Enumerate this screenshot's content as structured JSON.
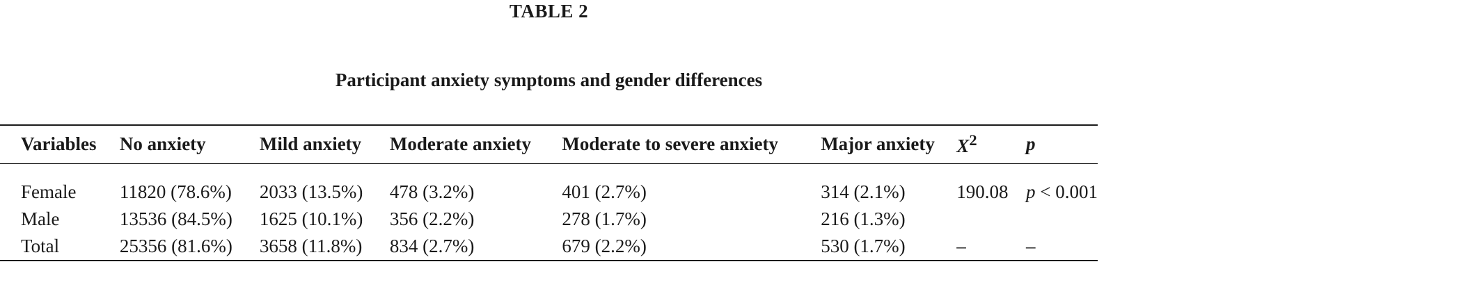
{
  "table": {
    "number": "TABLE 2",
    "caption": "Participant anxiety symptoms and gender differences",
    "headers": {
      "variables": "Variables",
      "no_anxiety": "No anxiety",
      "mild_anxiety": "Mild anxiety",
      "moderate_anxiety": "Moderate anxiety",
      "moderate_to_severe_anxiety": "Moderate to severe anxiety",
      "major_anxiety": "Major anxiety",
      "chi_square_base": "X",
      "chi_square_exp": "2",
      "p": "p"
    },
    "rows": [
      {
        "variable": "Female",
        "no_anxiety": "11820 (78.6%)",
        "mild_anxiety": "2033 (13.5%)",
        "moderate_anxiety": "478 (3.2%)",
        "moderate_to_severe_anxiety": "401 (2.7%)",
        "major_anxiety": "314 (2.1%)",
        "chi_square": "190.08",
        "p_symbol": "p",
        "p_value": " < 0.001"
      },
      {
        "variable": "Male",
        "no_anxiety": "13536 (84.5%)",
        "mild_anxiety": "1625 (10.1%)",
        "moderate_anxiety": "356 (2.2%)",
        "moderate_to_severe_anxiety": "278 (1.7%)",
        "major_anxiety": "216 (1.3%)",
        "chi_square": "",
        "p_symbol": "",
        "p_value": ""
      },
      {
        "variable": "Total",
        "no_anxiety": "25356 (81.6%)",
        "mild_anxiety": "3658 (11.8%)",
        "moderate_anxiety": "834 (2.7%)",
        "moderate_to_severe_anxiety": "679 (2.2%)",
        "major_anxiety": "530 (1.7%)",
        "chi_square": "–",
        "p_symbol": "",
        "p_value": "–"
      }
    ]
  }
}
